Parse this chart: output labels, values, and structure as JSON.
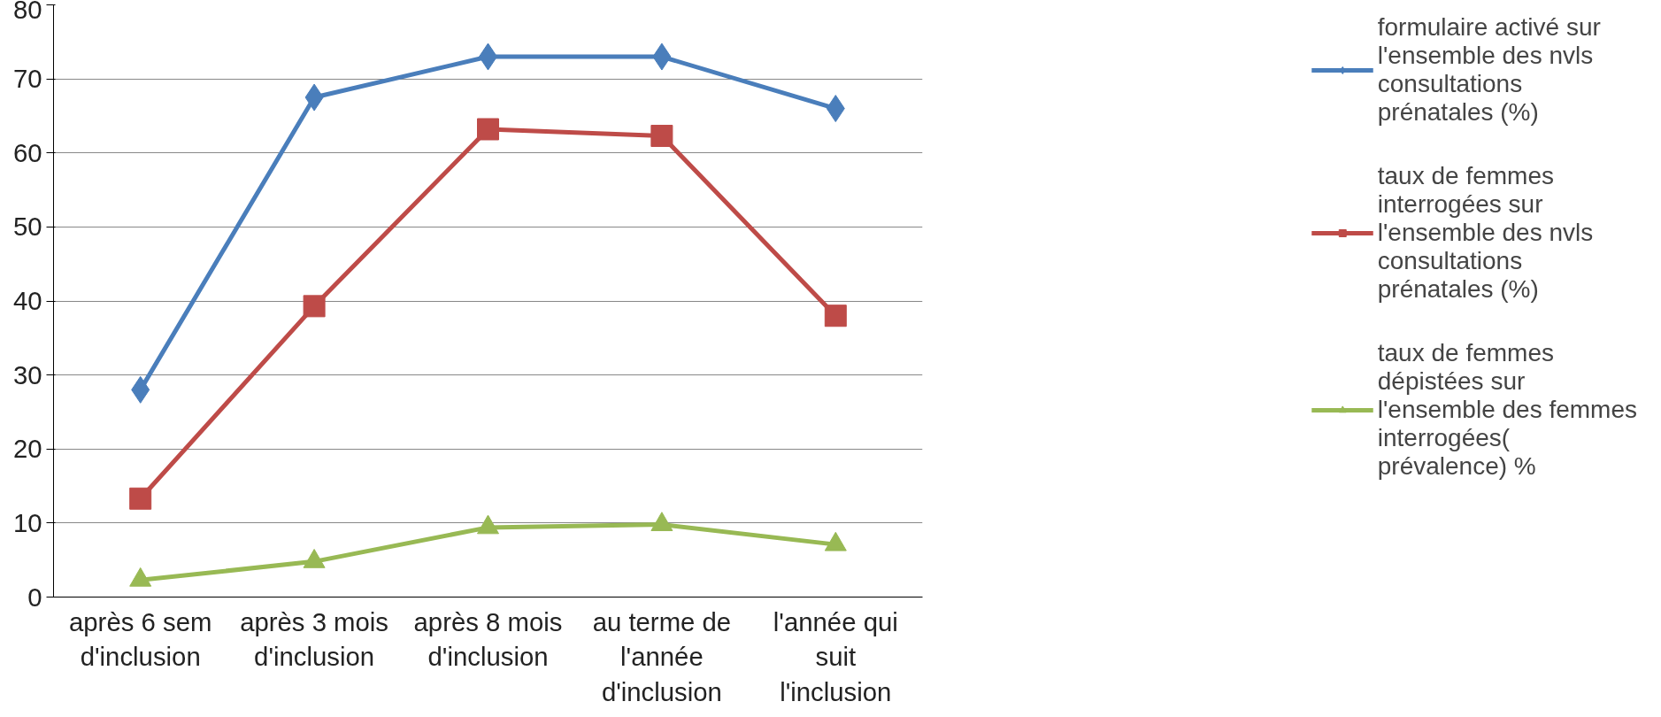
{
  "chart_data": {
    "type": "line",
    "categories": [
      "après 6 sem d'inclusion",
      "après 3 mois d'inclusion",
      "après 8 mois d'inclusion",
      "au terme de l'année d'inclusion",
      "l'année qui suit l'inclusion"
    ],
    "ylim": [
      0,
      80
    ],
    "yticks": [
      0,
      10,
      20,
      30,
      40,
      50,
      60,
      70,
      80
    ],
    "grid": "y",
    "legend": "right",
    "line_style": "solid",
    "series": [
      {
        "name": "formulaire activé sur l'ensemble des nvls consultations prénatales (%)",
        "color": "#4a7ebb",
        "marker": "diamond",
        "values": [
          28,
          67.5,
          73,
          73,
          66
        ]
      },
      {
        "name": "taux de femmes interrogées sur l'ensemble des nvls consultations prénatales (%)",
        "color": "#be4b48",
        "marker": "square",
        "values": [
          13.3,
          39.3,
          63.2,
          62.3,
          38
        ]
      },
      {
        "name": "taux de femmes dépistées sur l'ensemble des femmes interrogées( prévalence) %",
        "color": "#98b954",
        "marker": "triangle",
        "values": [
          2.3,
          4.8,
          9.4,
          9.8,
          7.1
        ]
      }
    ]
  }
}
